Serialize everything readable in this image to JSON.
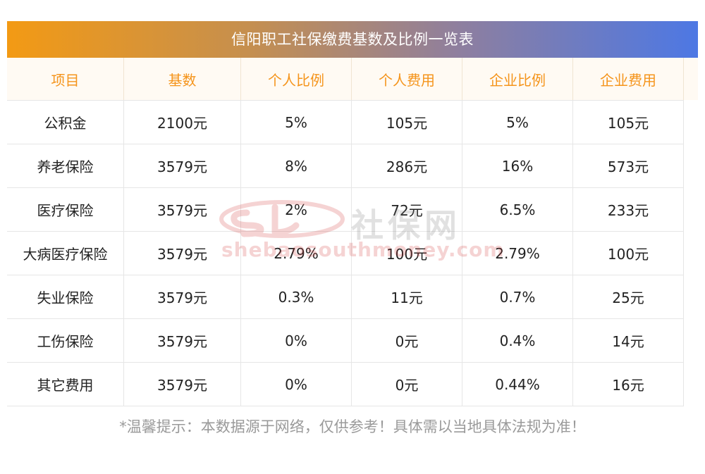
{
  "title": "信阳职工社保缴费基数及比例一览表",
  "table": {
    "headers": [
      "项目",
      "基数",
      "个人比例",
      "个人费用",
      "企业比例",
      "企业费用"
    ],
    "rows": [
      [
        "公积金",
        "2100元",
        "5%",
        "105元",
        "5%",
        "105元"
      ],
      [
        "养老保险",
        "3579元",
        "8%",
        "286元",
        "16%",
        "573元"
      ],
      [
        "医疗保险",
        "3579元",
        "2%",
        "72元",
        "6.5%",
        "233元"
      ],
      [
        "大病医疗保险",
        "3579元",
        "2.79%",
        "100元",
        "2.79%",
        "100元"
      ],
      [
        "失业保险",
        "3579元",
        "0.3%",
        "11元",
        "0.7%",
        "25元"
      ],
      [
        "工伤保险",
        "3579元",
        "0%",
        "0元",
        "0.4%",
        "14元"
      ],
      [
        "其它费用",
        "3579元",
        "0%",
        "0元",
        "0.44%",
        "16元"
      ]
    ]
  },
  "footer_note": "*温馨提示：本数据源于网络，仅供参考！具体需以当地具体法规为准！",
  "watermark": {
    "cn_text": "社保网",
    "url_text": "shebaosouthmoney.com"
  },
  "colors": {
    "title_gradient_start": "#f39a14",
    "title_gradient_end": "#4d78e4",
    "header_text": "#f5941b",
    "header_bg": "#fffaf3",
    "footer_text": "#9a9a9a"
  }
}
